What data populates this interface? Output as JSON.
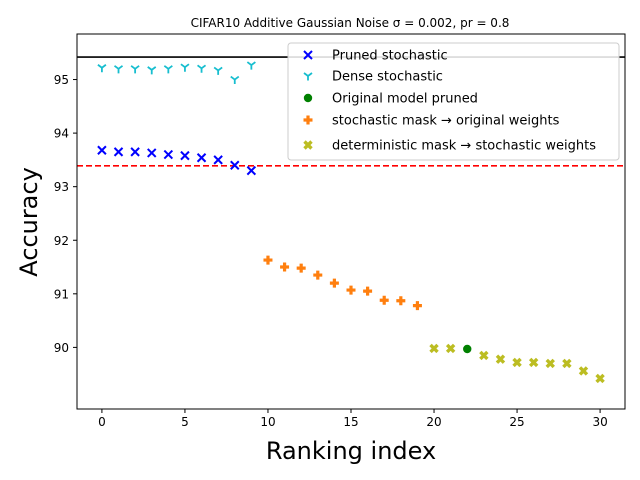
{
  "chart_data": {
    "type": "scatter",
    "title": "CIFAR10 Additive Gaussian Noise σ = 0.002, pr = 0.8",
    "xlabel": "Ranking index",
    "ylabel": "Accuracy",
    "xlim": [
      -1.5,
      31.5
    ],
    "ylim": [
      88.85,
      95.85
    ],
    "xticks": [
      0,
      5,
      10,
      15,
      20,
      25,
      30
    ],
    "yticks": [
      90,
      91,
      92,
      93,
      94,
      95
    ],
    "grid": false,
    "legend_position": "top-right",
    "reference_lines": [
      {
        "y": 95.42,
        "color": "#000000",
        "style": "solid"
      },
      {
        "y": 93.39,
        "color": "#ff0000",
        "style": "dashed"
      }
    ],
    "series": [
      {
        "name": "Pruned stochastic",
        "marker": "x",
        "color": "#0000ff",
        "x": [
          0,
          1,
          2,
          3,
          4,
          5,
          6,
          7,
          8,
          9
        ],
        "y": [
          93.68,
          93.65,
          93.65,
          93.63,
          93.6,
          93.58,
          93.54,
          93.5,
          93.4,
          93.3
        ]
      },
      {
        "name": "Dense stochastic",
        "marker": "tri_down",
        "color": "#17becf",
        "x": [
          0,
          1,
          2,
          3,
          4,
          5,
          6,
          7,
          8,
          9
        ],
        "y": [
          95.22,
          95.2,
          95.2,
          95.18,
          95.2,
          95.23,
          95.21,
          95.17,
          95.0,
          95.27
        ]
      },
      {
        "name": "Original model pruned",
        "marker": "o",
        "color": "#008000",
        "x": [
          22
        ],
        "y": [
          89.97
        ]
      },
      {
        "name": "stochastic mask → original weights",
        "marker": "P",
        "color": "#ff7f0e",
        "x": [
          10,
          11,
          12,
          13,
          14,
          15,
          16,
          17,
          18,
          19
        ],
        "y": [
          91.63,
          91.5,
          91.48,
          91.35,
          91.2,
          91.07,
          91.05,
          90.88,
          90.87,
          90.78
        ]
      },
      {
        "name": "deterministic mask → stochastic weights",
        "marker": "X",
        "color": "#bcbd22",
        "x": [
          20,
          21,
          23,
          24,
          25,
          26,
          27,
          28,
          29,
          30
        ],
        "y": [
          89.98,
          89.98,
          89.85,
          89.78,
          89.72,
          89.72,
          89.7,
          89.7,
          89.56,
          89.42
        ]
      }
    ]
  }
}
